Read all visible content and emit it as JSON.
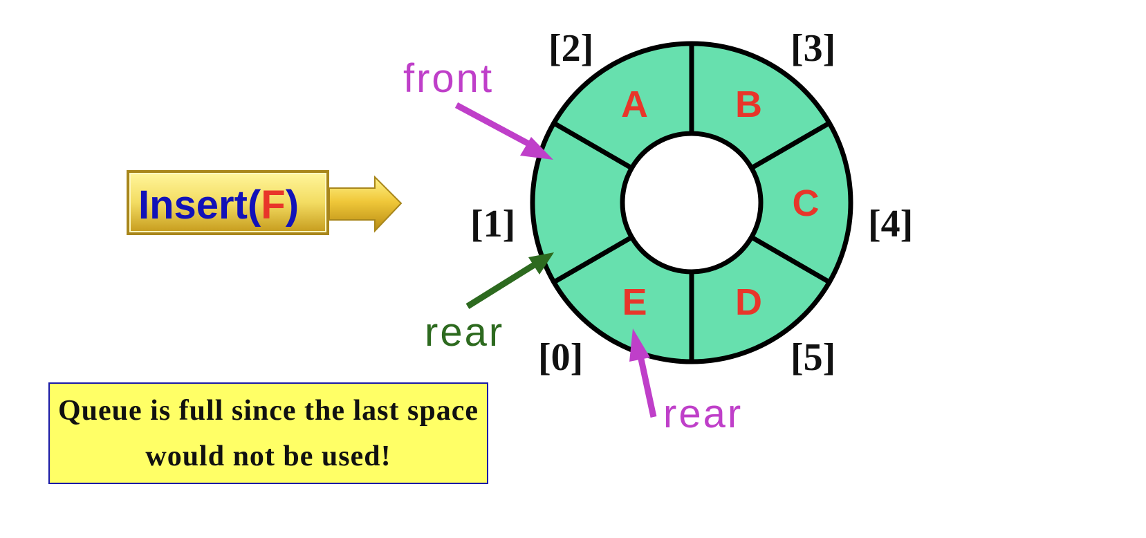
{
  "insert_button": {
    "label_prefix": "Insert(",
    "label_arg": "F",
    "label_suffix": ")"
  },
  "queue": {
    "slots": [
      {
        "index": "[0]",
        "value": "E"
      },
      {
        "index": "[1]",
        "value": ""
      },
      {
        "index": "[2]",
        "value": "A"
      },
      {
        "index": "[3]",
        "value": "B"
      },
      {
        "index": "[4]",
        "value": "C"
      },
      {
        "index": "[5]",
        "value": "D"
      }
    ]
  },
  "pointers": {
    "front": "front",
    "rear_old": "rear",
    "rear_new": "rear"
  },
  "colors": {
    "slot_fill": "#67e0ae",
    "slot_text": "#e8362a",
    "front_arrow": "#bf3fc9",
    "rear_old_arrow": "#2d6a1f",
    "rear_new_arrow": "#bf3fc9",
    "insert_text": "#1212b8",
    "insert_arg": "#e8362a"
  },
  "note": {
    "text": "Queue is full since the last space would not be used!"
  }
}
